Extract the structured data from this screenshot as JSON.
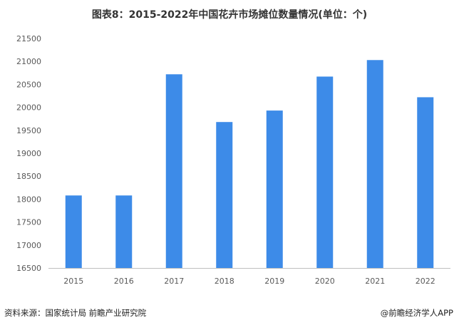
{
  "title": "图表8：2015-2022年中国花卉市场摊位数量情况(单位：个)",
  "footer": {
    "source": "资料来源：国家统计局 前瞻产业研究院",
    "brand": "@前瞻经济学人APP"
  },
  "colors": {
    "bar": "#3D8BE8",
    "axis": "#BFBFBF"
  },
  "chart_data": {
    "type": "bar",
    "title": "图表8：2015-2022年中国花卉市场摊位数量情况(单位：个)",
    "categories": [
      "2015",
      "2016",
      "2017",
      "2018",
      "2019",
      "2020",
      "2021",
      "2022"
    ],
    "values": [
      18080,
      18080,
      20720,
      19680,
      19930,
      20670,
      21030,
      20220
    ],
    "ylim": [
      16500,
      21500
    ],
    "yticks": [
      16500,
      17000,
      17500,
      18000,
      18500,
      19000,
      19500,
      20000,
      20500,
      21000,
      21500
    ],
    "xlabel": "",
    "ylabel": "",
    "grid": false
  }
}
